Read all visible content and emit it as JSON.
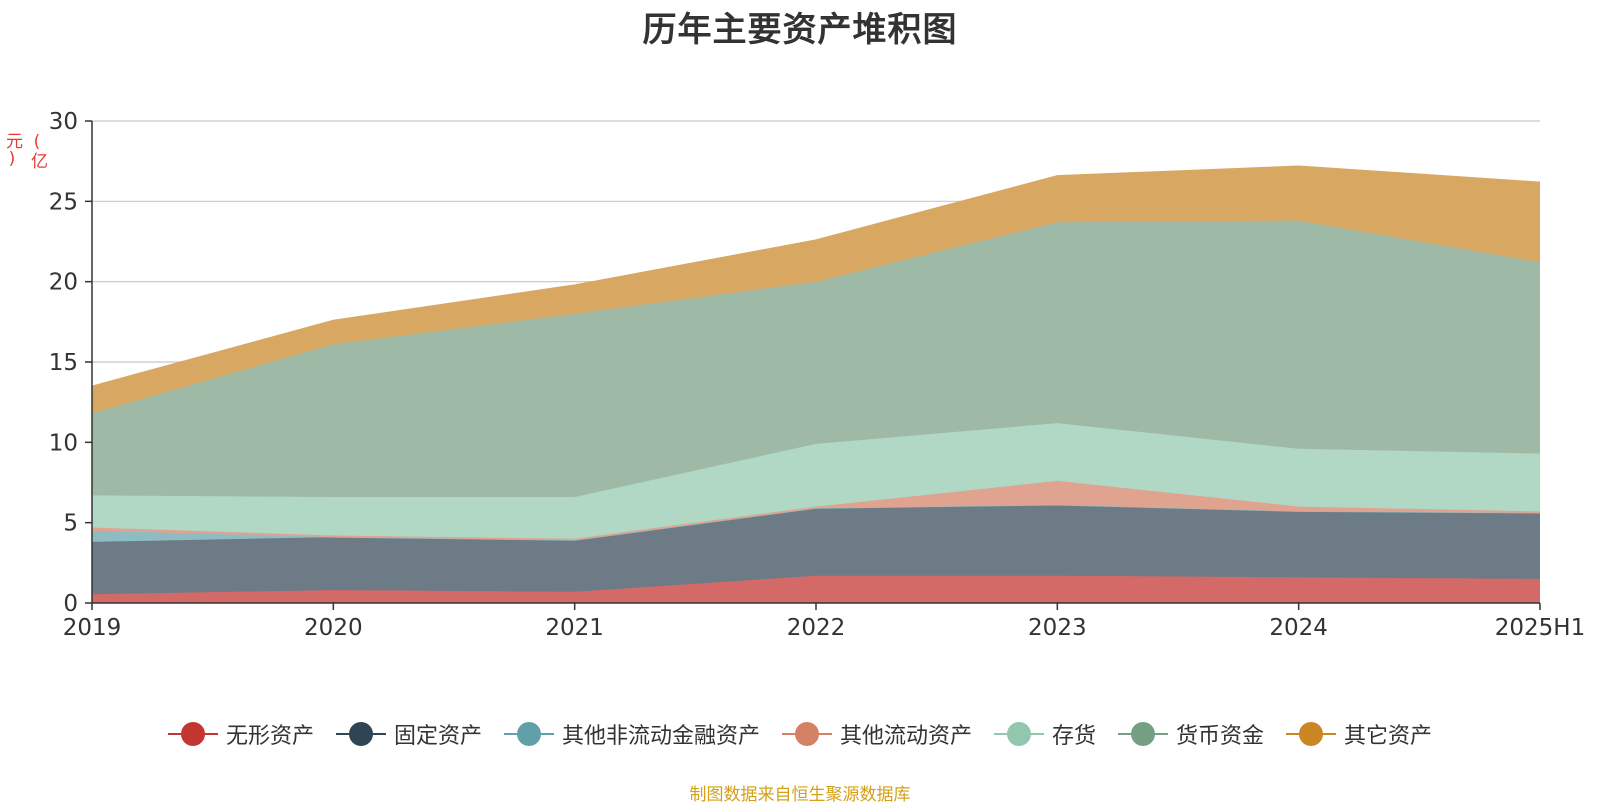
{
  "title": "历年主要资产堆积图",
  "footer": "制图数据来自恒生聚源数据库",
  "chart_data": {
    "type": "area",
    "stacked": true,
    "title": "历年主要资产堆积图",
    "ylabel": "(亿元)",
    "ylim": [
      0,
      30
    ],
    "yticks": [
      0,
      5,
      10,
      15,
      20,
      25,
      30
    ],
    "grid": true,
    "legend_position": "bottom",
    "categories": [
      "2019",
      "2020",
      "2021",
      "2022",
      "2023",
      "2024",
      "2025H1"
    ],
    "series": [
      {
        "name": "无形资产",
        "color": "#c23531",
        "fill": "#d46a68",
        "values": [
          0.55,
          0.8,
          0.7,
          1.7,
          1.7,
          1.6,
          1.5
        ]
      },
      {
        "name": "固定资产",
        "color": "#2f4554",
        "fill": "#6d7b87",
        "values": [
          3.25,
          3.3,
          3.2,
          4.2,
          4.4,
          4.1,
          4.1
        ]
      },
      {
        "name": "其他非流动金融资产",
        "color": "#61a0a8",
        "fill": "#8fbcc2",
        "values": [
          0.7,
          0.0,
          0.0,
          0.0,
          0.0,
          0.0,
          0.0
        ]
      },
      {
        "name": "其他流动资产",
        "color": "#d48265",
        "fill": "#e0a390",
        "values": [
          0.2,
          0.1,
          0.1,
          0.1,
          1.5,
          0.3,
          0.1
        ]
      },
      {
        "name": "存货",
        "color": "#91c7ae",
        "fill": "#b1d7c5",
        "values": [
          2.0,
          2.4,
          2.6,
          3.9,
          3.6,
          3.6,
          3.6
        ]
      },
      {
        "name": "货币资金",
        "color": "#749f83",
        "fill": "#9eb9a6",
        "values": [
          5.1,
          9.5,
          11.4,
          10.1,
          12.5,
          14.2,
          11.9
        ]
      },
      {
        "name": "其它资产",
        "color": "#ca8622",
        "fill": "#d8a762",
        "values": [
          1.7,
          1.5,
          1.8,
          2.6,
          2.9,
          3.4,
          5.0
        ]
      }
    ]
  }
}
